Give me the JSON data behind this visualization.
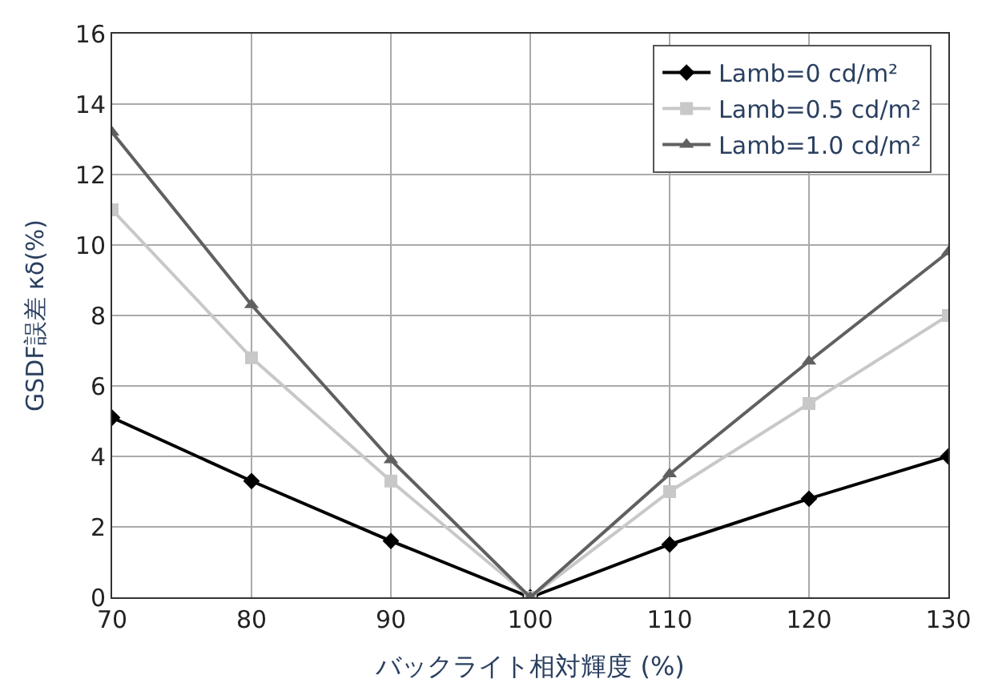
{
  "chart_data": {
    "type": "line",
    "xlabel": "バックライト相対輝度 (%)",
    "ylabel": "GSDF誤差 κδ(%)",
    "x": [
      70,
      80,
      90,
      100,
      110,
      120,
      130
    ],
    "series": [
      {
        "name": "Lamb=0 cd/m²",
        "color": "#000000",
        "marker": "diamond",
        "values": [
          5.1,
          3.3,
          1.6,
          0,
          1.5,
          2.8,
          4.0
        ]
      },
      {
        "name": "Lamb=0.5 cd/m²",
        "color": "#c8c8c8",
        "marker": "square",
        "values": [
          11.0,
          6.8,
          3.3,
          0,
          3.0,
          5.5,
          8.0
        ]
      },
      {
        "name": "Lamb=1.0 cd/m²",
        "color": "#606060",
        "marker": "triangle",
        "values": [
          13.2,
          8.3,
          3.9,
          0,
          3.5,
          6.7,
          9.8
        ]
      }
    ],
    "xlim": [
      70,
      130
    ],
    "xticks": [
      70,
      80,
      90,
      100,
      110,
      120,
      130
    ],
    "ylim": [
      0,
      16
    ],
    "yticks": [
      0,
      2,
      4,
      6,
      8,
      10,
      12,
      14,
      16
    ],
    "grid": true,
    "legend": "top right",
    "line_style": "solid"
  }
}
